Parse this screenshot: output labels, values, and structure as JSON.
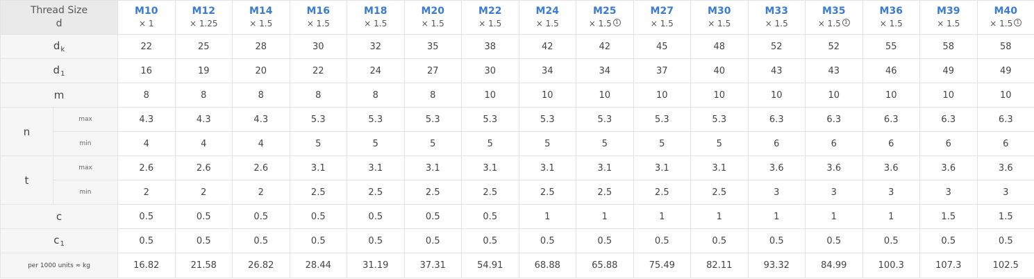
{
  "header": {
    "title": "Thread Size",
    "symbol": "d"
  },
  "sizes": [
    {
      "name": "M10",
      "pitch": "× 1",
      "note": ""
    },
    {
      "name": "M12",
      "pitch": "× 1.25",
      "note": ""
    },
    {
      "name": "M14",
      "pitch": "× 1.5",
      "note": ""
    },
    {
      "name": "M16",
      "pitch": "× 1.5",
      "note": ""
    },
    {
      "name": "M18",
      "pitch": "× 1.5",
      "note": ""
    },
    {
      "name": "M20",
      "pitch": "× 1.5",
      "note": ""
    },
    {
      "name": "M22",
      "pitch": "× 1.5",
      "note": ""
    },
    {
      "name": "M24",
      "pitch": "× 1.5",
      "note": ""
    },
    {
      "name": "M25",
      "pitch": "× 1.5",
      "note": "1"
    },
    {
      "name": "M27",
      "pitch": "× 1.5",
      "note": ""
    },
    {
      "name": "M30",
      "pitch": "× 1.5",
      "note": ""
    },
    {
      "name": "M33",
      "pitch": "× 1.5",
      "note": ""
    },
    {
      "name": "M35",
      "pitch": "× 1.5",
      "note": "1"
    },
    {
      "name": "M36",
      "pitch": "× 1.5",
      "note": ""
    },
    {
      "name": "M39",
      "pitch": "× 1.5",
      "note": ""
    },
    {
      "name": "M40",
      "pitch": "× 1.5",
      "note": "1"
    }
  ],
  "rows": [
    {
      "param": "d",
      "sub": "k",
      "sublabel": "",
      "values": [
        "22",
        "25",
        "28",
        "30",
        "32",
        "35",
        "38",
        "42",
        "42",
        "45",
        "48",
        "52",
        "52",
        "55",
        "58",
        "58"
      ]
    },
    {
      "param": "d",
      "sub": "1",
      "sublabel": "",
      "values": [
        "16",
        "19",
        "20",
        "22",
        "24",
        "27",
        "30",
        "34",
        "34",
        "37",
        "40",
        "43",
        "43",
        "46",
        "49",
        "49"
      ]
    },
    {
      "param": "m",
      "sub": "",
      "sublabel": "",
      "values": [
        "8",
        "8",
        "8",
        "8",
        "8",
        "8",
        "10",
        "10",
        "10",
        "10",
        "10",
        "10",
        "10",
        "10",
        "10",
        "10"
      ]
    },
    {
      "param": "n",
      "sub": "",
      "sublabel": "max",
      "values": [
        "4.3",
        "4.3",
        "4.3",
        "5.3",
        "5.3",
        "5.3",
        "5.3",
        "5.3",
        "5.3",
        "5.3",
        "5.3",
        "6.3",
        "6.3",
        "6.3",
        "6.3",
        "6.3"
      ]
    },
    {
      "param": "n",
      "sub": "",
      "sublabel": "min",
      "values": [
        "4",
        "4",
        "4",
        "5",
        "5",
        "5",
        "5",
        "5",
        "5",
        "5",
        "5",
        "6",
        "6",
        "6",
        "6",
        "6"
      ]
    },
    {
      "param": "t",
      "sub": "",
      "sublabel": "max",
      "values": [
        "2.6",
        "2.6",
        "2.6",
        "3.1",
        "3.1",
        "3.1",
        "3.1",
        "3.1",
        "3.1",
        "3.1",
        "3.1",
        "3.6",
        "3.6",
        "3.6",
        "3.6",
        "3.6"
      ]
    },
    {
      "param": "t",
      "sub": "",
      "sublabel": "min",
      "values": [
        "2",
        "2",
        "2",
        "2.5",
        "2.5",
        "2.5",
        "2.5",
        "2.5",
        "2.5",
        "2.5",
        "2.5",
        "3",
        "3",
        "3",
        "3",
        "3"
      ]
    },
    {
      "param": "c",
      "sub": "",
      "sublabel": "",
      "values": [
        "0.5",
        "0.5",
        "0.5",
        "0.5",
        "0.5",
        "0.5",
        "0.5",
        "1",
        "1",
        "1",
        "1",
        "1",
        "1",
        "1",
        "1.5",
        "1.5"
      ]
    },
    {
      "param": "c",
      "sub": "1",
      "sublabel": "",
      "values": [
        "0.5",
        "0.5",
        "0.5",
        "0.5",
        "0.5",
        "0.5",
        "0.5",
        "0.5",
        "0.5",
        "0.5",
        "0.5",
        "0.5",
        "0.5",
        "0.5",
        "0.5",
        "0.5"
      ]
    },
    {
      "param": "per 1000 units ≈ kg",
      "sub": "",
      "sublabel": "",
      "values": [
        "16.82",
        "21.58",
        "26.82",
        "28.44",
        "31.19",
        "37.31",
        "54.91",
        "68.88",
        "65.88",
        "75.49",
        "82.11",
        "93.32",
        "84.99",
        "100.3",
        "107.3",
        "102.5"
      ]
    }
  ]
}
